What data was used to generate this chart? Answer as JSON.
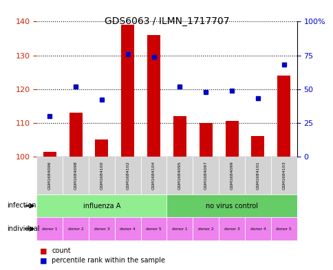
{
  "title": "GDS6063 / ILMN_1717707",
  "samples": [
    "GSM1684096",
    "GSM1684098",
    "GSM1684100",
    "GSM1684102",
    "GSM1684104",
    "GSM1684095",
    "GSM1684097",
    "GSM1684099",
    "GSM1684101",
    "GSM1684103"
  ],
  "counts": [
    101.5,
    113,
    105,
    139,
    136,
    112,
    110,
    110.5,
    106,
    124
  ],
  "percentile_ranks": [
    30,
    52,
    42,
    76,
    74,
    52,
    48,
    49,
    43,
    68
  ],
  "ylim_left": [
    100,
    140
  ],
  "ylim_right": [
    0,
    100
  ],
  "yticks_left": [
    100,
    110,
    120,
    130,
    140
  ],
  "yticks_right": [
    0,
    25,
    50,
    75,
    100
  ],
  "infection_groups": [
    {
      "label": "influenza A",
      "start": 0,
      "end": 5,
      "color": "#90ee90"
    },
    {
      "label": "no virus control",
      "start": 5,
      "end": 10,
      "color": "#66cc66"
    }
  ],
  "donors": [
    "donor 1",
    "donor 2",
    "donor 3",
    "donor 4",
    "donor 5",
    "donor 1",
    "donor 2",
    "donor 3",
    "donor 4",
    "donor 5"
  ],
  "donor_color": "#ee82ee",
  "bar_color": "#cc0000",
  "dot_color": "#0000cc",
  "label_count": "count",
  "label_percentile": "percentile rank within the sample",
  "left_tick_color": "#cc2200",
  "right_tick_color": "#0000cc",
  "grid_color": "#000000",
  "bg_color": "#f0f0f0"
}
